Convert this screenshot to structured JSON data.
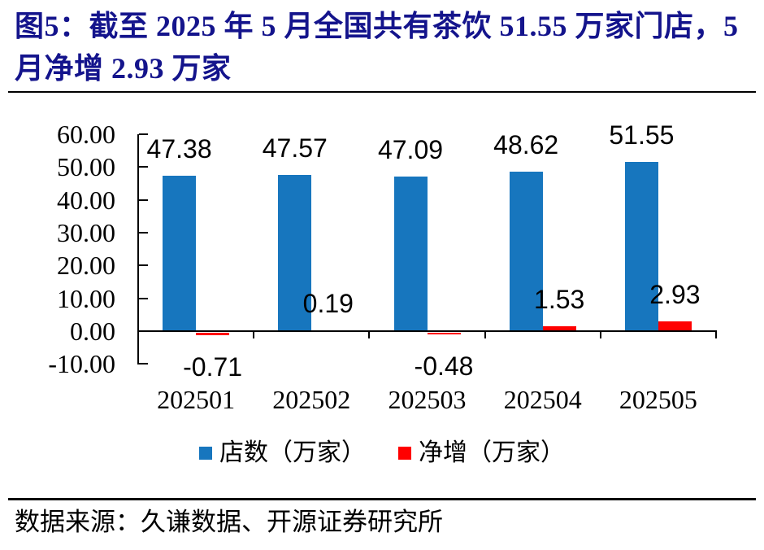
{
  "figure": {
    "id_label": "图5",
    "title_line1": "图5：截至 2025 年 5 月全国共有茶饮 51.55 万家门店，5",
    "title_line2": "月净增 2.93 万家",
    "source": "数据来源：久谦数据、开源证券研究所"
  },
  "colors": {
    "title": "#14148C",
    "bar_blue": "#1776BE",
    "bar_red": "#FF0000",
    "axis": "#000000",
    "label_text": "#000000"
  },
  "chart_data": {
    "type": "bar",
    "categories": [
      "202501",
      "202502",
      "202503",
      "202504",
      "202505"
    ],
    "series": [
      {
        "name": "店数（万家）",
        "color": "#1776BE",
        "values": [
          47.38,
          47.57,
          47.09,
          48.62,
          51.55
        ]
      },
      {
        "name": "净增（万家）",
        "color": "#FF0000",
        "values": [
          -0.71,
          0.19,
          -0.48,
          1.53,
          2.93
        ]
      }
    ],
    "data_labels": {
      "店数（万家）": [
        "47.38",
        "47.57",
        "47.09",
        "48.62",
        "51.55"
      ],
      "净增（万家）": [
        "-0.71",
        "0.19",
        "-0.48",
        "1.53",
        "2.93"
      ]
    },
    "ylim": [
      -10,
      60
    ],
    "ytick_step": 10,
    "ytick_labels": [
      "60.00",
      "50.00",
      "40.00",
      "30.00",
      "20.00",
      "10.00",
      "0.00",
      "-10.00"
    ],
    "xlabel": "",
    "ylabel": "",
    "grid": false,
    "legend_position": "bottom"
  }
}
